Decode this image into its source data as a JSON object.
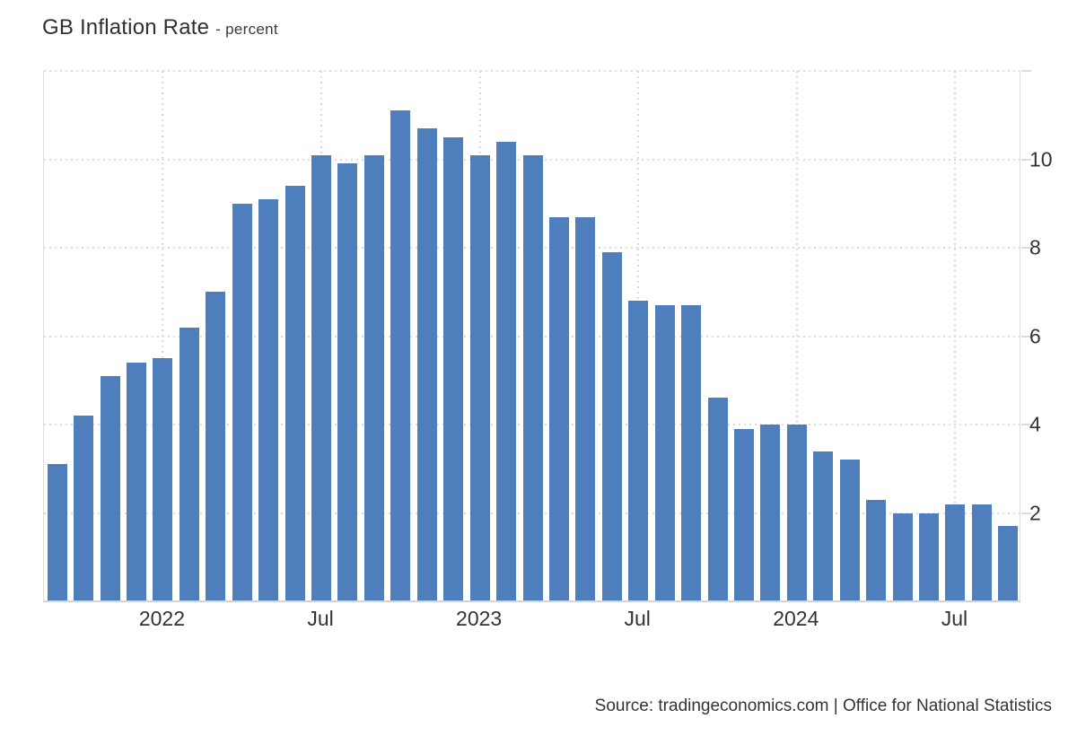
{
  "title": {
    "main": "GB Inflation Rate",
    "subtitle": "- percent"
  },
  "source": {
    "text": "Source: tradingeconomics.com | Office for National Statistics"
  },
  "colors": {
    "bar": "#4e7ebc",
    "grid": "#dcdcdc",
    "axis_border": "#dddddd",
    "baseline": "#d4d4d4",
    "text": "#333333"
  },
  "chart_data": {
    "type": "bar",
    "title": "GB Inflation Rate",
    "subtitle": "- percent",
    "ylabel": "percent",
    "xlabel": "",
    "ylim": [
      0,
      12
    ],
    "ytick_labels": [
      2,
      4,
      6,
      8,
      10
    ],
    "gridline_values": [
      2,
      4,
      6,
      8,
      10,
      12
    ],
    "grid": "dotted",
    "legend_position": "none",
    "bar_color": "#4e7ebc",
    "categories": [
      "Sep 2021",
      "Oct 2021",
      "Nov 2021",
      "Dec 2021",
      "Jan 2022",
      "Feb 2022",
      "Mar 2022",
      "Apr 2022",
      "May 2022",
      "Jun 2022",
      "Jul 2022",
      "Aug 2022",
      "Sep 2022",
      "Oct 2022",
      "Nov 2022",
      "Dec 2022",
      "Jan 2023",
      "Feb 2023",
      "Mar 2023",
      "Apr 2023",
      "May 2023",
      "Jun 2023",
      "Jul 2023",
      "Aug 2023",
      "Sep 2023",
      "Oct 2023",
      "Nov 2023",
      "Dec 2023",
      "Jan 2024",
      "Feb 2024",
      "Mar 2024",
      "Apr 2024",
      "May 2024",
      "Jun 2024",
      "Jul 2024",
      "Aug 2024",
      "Sep 2024"
    ],
    "values": [
      3.1,
      4.2,
      5.1,
      5.4,
      5.5,
      6.2,
      7.0,
      9.0,
      9.1,
      9.4,
      10.1,
      9.9,
      10.1,
      11.1,
      10.7,
      10.5,
      10.1,
      10.4,
      10.1,
      8.7,
      8.7,
      7.9,
      6.8,
      6.7,
      6.7,
      4.6,
      3.9,
      4.0,
      4.0,
      3.4,
      3.2,
      2.3,
      2.0,
      2.0,
      2.2,
      2.2,
      1.7
    ],
    "xticks": [
      {
        "index": 4,
        "label": "2022"
      },
      {
        "index": 10,
        "label": "Jul"
      },
      {
        "index": 16,
        "label": "2023"
      },
      {
        "index": 22,
        "label": "Jul"
      },
      {
        "index": 28,
        "label": "2024"
      },
      {
        "index": 34,
        "label": "Jul"
      }
    ]
  }
}
